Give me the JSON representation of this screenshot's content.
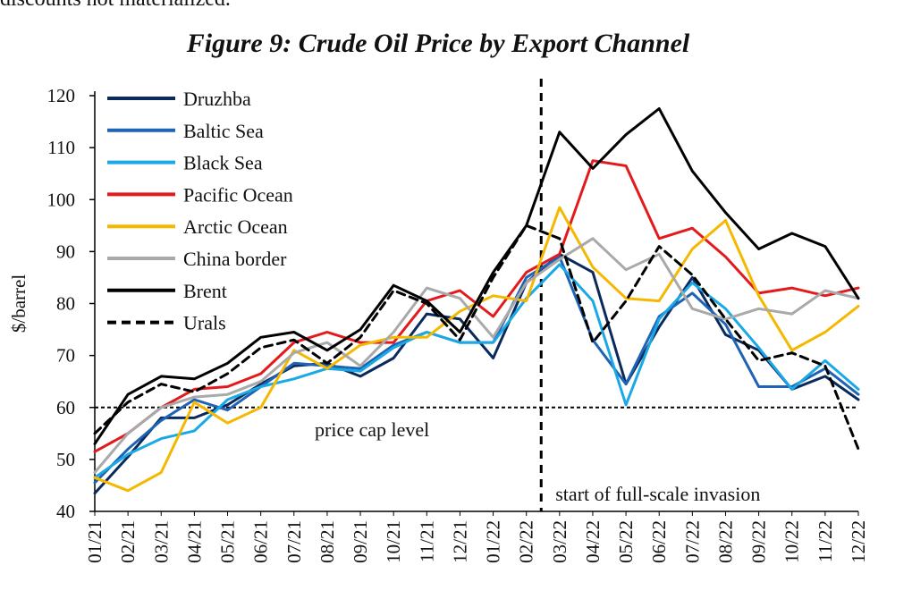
{
  "header": {
    "fragment": "discounts not materialized."
  },
  "chart_data": {
    "type": "line",
    "title": "Figure 9: Crude Oil Price by Export Channel",
    "xlabel": "",
    "ylabel": "$/barrel",
    "ylim": [
      40,
      120
    ],
    "yticks": [
      40,
      50,
      60,
      70,
      80,
      90,
      100,
      110,
      120
    ],
    "categories": [
      "01/21",
      "02/21",
      "03/21",
      "04/21",
      "05/21",
      "06/21",
      "07/21",
      "08/21",
      "09/21",
      "10/21",
      "11/21",
      "12/21",
      "01/22",
      "02/22",
      "03/22",
      "04/22",
      "05/22",
      "06/22",
      "07/22",
      "08/22",
      "09/22",
      "10/22",
      "11/22",
      "12/22"
    ],
    "series": [
      {
        "name": "Druzhba",
        "color": "#0a2a5e",
        "dash": false,
        "values": [
          43.5,
          50.5,
          58,
          58,
          60.5,
          64.5,
          68,
          68.5,
          66,
          69.5,
          78,
          77,
          69.5,
          84,
          89.5,
          86,
          64.5,
          75.5,
          85,
          74,
          71,
          63.5,
          66,
          61.5
        ]
      },
      {
        "name": "Baltic Sea",
        "color": "#1f63b5",
        "dash": false,
        "values": [
          45.5,
          52,
          57.5,
          61.5,
          59.5,
          64,
          68.5,
          68,
          67.5,
          72,
          74.5,
          72.5,
          72.5,
          85,
          89,
          73,
          64.5,
          77.5,
          82,
          76,
          64,
          64,
          67.5,
          62.5
        ]
      },
      {
        "name": "Black Sea",
        "color": "#1ba9e6",
        "dash": false,
        "values": [
          46.5,
          51,
          54,
          55.5,
          61.5,
          64,
          65.5,
          67.5,
          67,
          71.5,
          74.5,
          72.5,
          72.5,
          81,
          87.5,
          80.5,
          60.5,
          77,
          84,
          79,
          71.5,
          63.5,
          69,
          63.5
        ]
      },
      {
        "name": "Pacific Ocean",
        "color": "#e31a1c",
        "dash": false,
        "values": [
          51.5,
          55,
          60,
          63.5,
          64,
          66.5,
          72.5,
          74.5,
          72.5,
          72.5,
          80.5,
          82.5,
          77.5,
          86,
          89.5,
          107.5,
          106.5,
          92.5,
          94.5,
          89,
          82,
          83,
          81.5,
          83
        ]
      },
      {
        "name": "Arctic Ocean",
        "color": "#f5b800",
        "dash": false,
        "values": [
          46.5,
          44,
          47.5,
          61,
          57,
          60,
          71,
          67.5,
          72,
          73.5,
          73.5,
          78.5,
          81.5,
          80.5,
          98.5,
          87,
          81,
          80.5,
          90.5,
          96,
          81.5,
          71,
          74.5,
          79.5
        ]
      },
      {
        "name": "China border",
        "color": "#a9a9a9",
        "dash": false,
        "values": [
          47.5,
          55,
          60,
          62,
          62.5,
          65,
          70.5,
          72.5,
          68,
          74.5,
          83,
          81,
          73.5,
          84,
          88.5,
          92.5,
          86.5,
          89.5,
          79,
          77,
          79,
          78,
          82.5,
          81
        ]
      },
      {
        "name": "Brent",
        "color": "#000000",
        "dash": false,
        "values": [
          53,
          62.5,
          66,
          65.5,
          68.5,
          73.5,
          74.5,
          71,
          75,
          83.5,
          80.5,
          74.5,
          86,
          95,
          113,
          106,
          112.5,
          117.5,
          105.5,
          97.5,
          90.5,
          93.5,
          91,
          81
        ]
      },
      {
        "name": "Urals",
        "color": "#000000",
        "dash": true,
        "values": [
          55,
          61,
          64.5,
          63,
          66.5,
          71.5,
          73,
          68.5,
          73.5,
          82.5,
          80,
          73,
          85,
          95,
          92.5,
          72.5,
          80.5,
          91,
          85.5,
          77,
          69,
          70.5,
          68,
          52
        ]
      }
    ],
    "legend_position": "top-left",
    "annotations": {
      "price_cap_value": 60,
      "price_cap_label": "price cap level",
      "invasion_after_category": "02/22",
      "invasion_label": "start of full-scale invasion"
    }
  }
}
